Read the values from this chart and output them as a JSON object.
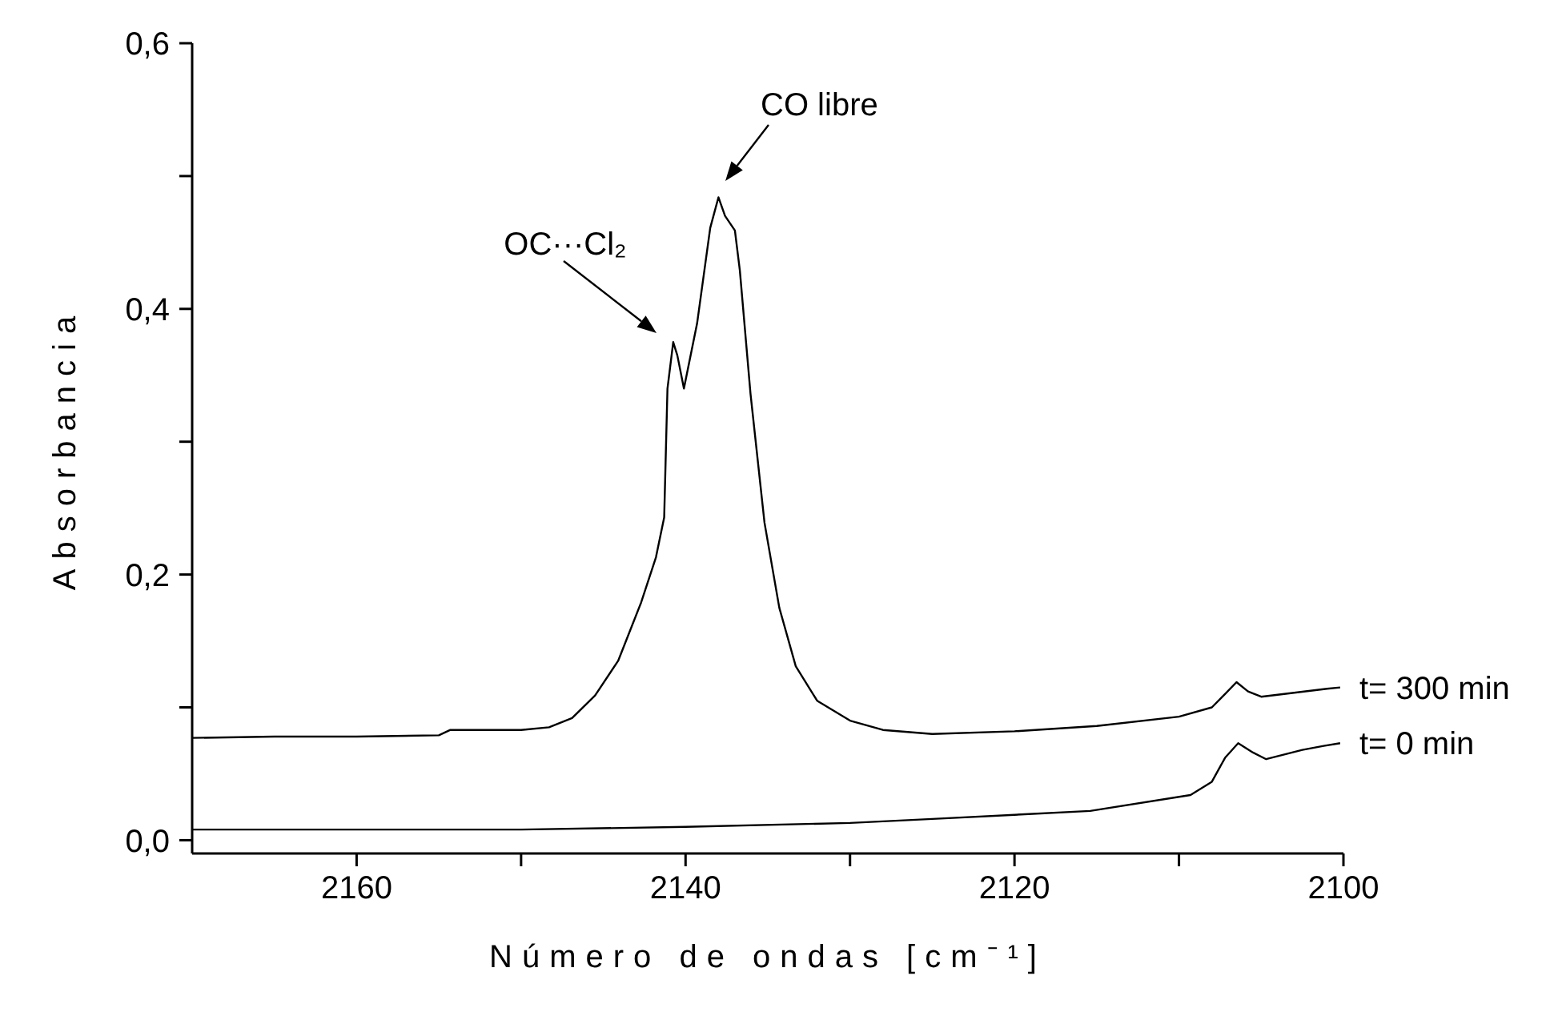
{
  "chart_data": {
    "type": "line",
    "xlabel": "Número de ondas [cm⁻¹]",
    "ylabel": "Absorbancia",
    "xlim": [
      2170,
      2100
    ],
    "xticks": [
      2160,
      {
        "value": 2150,
        "label": null
      },
      2140,
      {
        "value": 2130,
        "label": null
      },
      2120,
      {
        "value": 2110,
        "label": null
      },
      2100
    ],
    "ylim": [
      -0.01,
      0.6
    ],
    "yticks": [
      {
        "value": 0,
        "label": "0,0"
      },
      {
        "value": 0.1,
        "label": null
      },
      {
        "value": 0.2,
        "label": "0,2"
      },
      {
        "value": 0.3,
        "label": null
      },
      {
        "value": 0.4,
        "label": "0,4"
      },
      {
        "value": 0.5,
        "label": null
      },
      {
        "value": 0.6,
        "label": "0,6"
      }
    ],
    "marker": "none",
    "line_style": "solid",
    "series": [
      {
        "name": "t= 300 min",
        "color": "#000000",
        "x": [
          2170,
          2165,
          2160,
          2155,
          2154.3,
          2150,
          2148.3,
          2146.9,
          2145.5,
          2144.1,
          2142.7,
          2141.8,
          2141.3,
          2141.1,
          2140.75,
          2140.5,
          2140.1,
          2139.3,
          2138.5,
          2138.0,
          2137.6,
          2137.0,
          2136.7,
          2136.05,
          2135.2,
          2134.3,
          2133.3,
          2132,
          2130,
          2128,
          2125,
          2120,
          2115,
          2110,
          2108,
          2107.2,
          2106.5,
          2105.8,
          2105,
          2103,
          2101,
          2100.2
        ],
        "values": [
          0.077,
          0.078,
          0.078,
          0.079,
          0.083,
          0.083,
          0.085,
          0.092,
          0.109,
          0.135,
          0.179,
          0.213,
          0.243,
          0.34,
          0.375,
          0.365,
          0.34,
          0.389,
          0.461,
          0.484,
          0.47,
          0.459,
          0.429,
          0.336,
          0.239,
          0.175,
          0.131,
          0.105,
          0.09,
          0.083,
          0.08,
          0.082,
          0.086,
          0.093,
          0.1,
          0.11,
          0.119,
          0.112,
          0.108,
          0.111,
          0.114,
          0.115
        ]
      },
      {
        "name": "t= 0 min",
        "color": "#000000",
        "x": [
          2170,
          2160,
          2150,
          2140,
          2130,
          2125,
          2115.4,
          2109.3,
          2108,
          2107.2,
          2106.4,
          2105.5,
          2104.7,
          2102.5,
          2101.2,
          2100.2
        ],
        "values": [
          0.008,
          0.008,
          0.008,
          0.01,
          0.013,
          0.016,
          0.022,
          0.034,
          0.044,
          0.062,
          0.073,
          0.066,
          0.061,
          0.068,
          0.071,
          0.073
        ]
      }
    ],
    "annotations": [
      "OC···Cl₂",
      "CO libre"
    ]
  }
}
